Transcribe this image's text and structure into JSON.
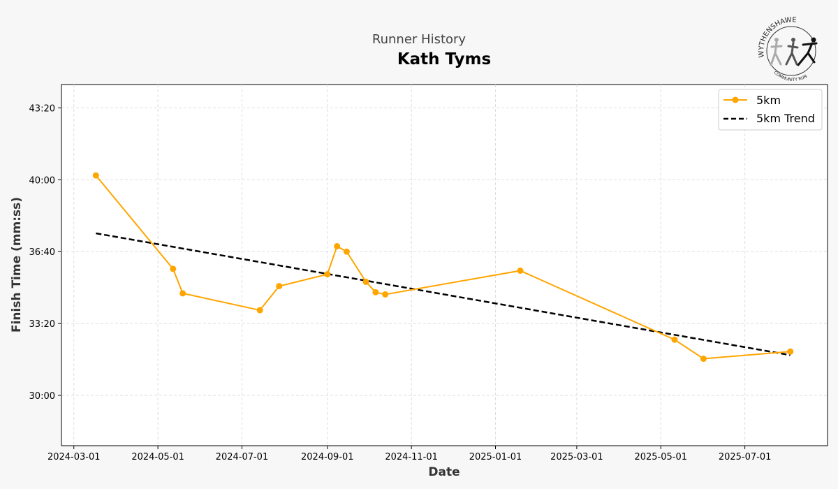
{
  "header": {
    "suptitle": "Runner History",
    "title": "Kath Tyms"
  },
  "logo": {
    "top_text": "WYTHENSHAWE",
    "bottom_text": "COMMUNITY RUN",
    "icon": "runners-logo-icon"
  },
  "chart_data": {
    "type": "line",
    "xlabel": "Date",
    "ylabel": "Finish Time (mm:ss)",
    "x_ticks": [
      "2024-03-01",
      "2024-05-01",
      "2024-07-01",
      "2024-09-01",
      "2024-11-01",
      "2025-01-01",
      "2025-03-01",
      "2025-05-01",
      "2025-07-01"
    ],
    "y_ticks": [
      "30:00",
      "33:20",
      "36:40",
      "40:00",
      "43:20"
    ],
    "xlim": [
      "2024-02-21",
      "2025-08-30"
    ],
    "ylim": [
      "27:40",
      "44:25"
    ],
    "grid": true,
    "legend_position": "top-right",
    "series": [
      {
        "name": "5km",
        "color": "#FFA500",
        "marker": "circle",
        "points": [
          {
            "date": "2024-03-17",
            "time": "40:12"
          },
          {
            "date": "2024-05-12",
            "time": "35:52"
          },
          {
            "date": "2024-05-19",
            "time": "34:44"
          },
          {
            "date": "2024-07-14",
            "time": "33:57"
          },
          {
            "date": "2024-07-28",
            "time": "35:04"
          },
          {
            "date": "2024-09-01",
            "time": "35:37"
          },
          {
            "date": "2024-09-08",
            "time": "36:55"
          },
          {
            "date": "2024-09-15",
            "time": "36:40"
          },
          {
            "date": "2024-09-29",
            "time": "35:16"
          },
          {
            "date": "2024-10-06",
            "time": "34:47"
          },
          {
            "date": "2024-10-13",
            "time": "34:41"
          },
          {
            "date": "2025-01-19",
            "time": "35:47"
          },
          {
            "date": "2025-05-11",
            "time": "32:35"
          },
          {
            "date": "2025-06-01",
            "time": "31:42"
          },
          {
            "date": "2025-08-03",
            "time": "32:02"
          }
        ]
      },
      {
        "name": "5km Trend",
        "color": "#000000",
        "style": "dashed",
        "points": [
          {
            "date": "2024-03-17",
            "time": "37:31"
          },
          {
            "date": "2025-08-03",
            "time": "31:52"
          }
        ]
      }
    ]
  }
}
